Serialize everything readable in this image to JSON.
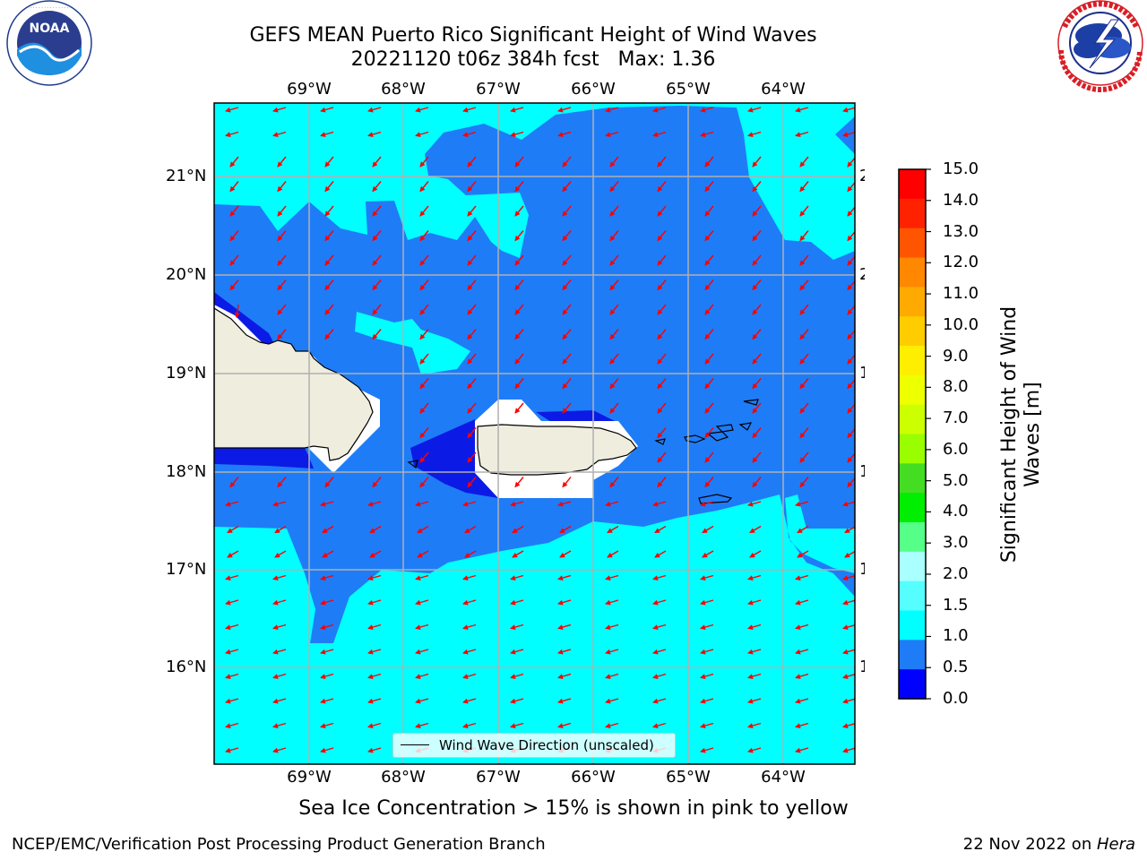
{
  "header": {
    "title_line1": "GEFS MEAN Puerto Rico Significant Height of Wind Waves",
    "title_line2": "20221120 t06z 384h fcst   Max: 1.36"
  },
  "logos": {
    "noaa": {
      "text": "NOAA",
      "ring_text": "NATIONAL OCEANIC AND ATMOSPHERIC ADMINISTRATION · U.S. DEPARTMENT OF COMMERCE"
    },
    "nws": {
      "ring_text": "NATIONAL WEATHER SERVICE"
    }
  },
  "map": {
    "lon_labels": [
      "69°W",
      "68°W",
      "67°W",
      "66°W",
      "65°W",
      "64°W"
    ],
    "lat_labels": [
      "21°N",
      "20°N",
      "19°N",
      "18°N",
      "17°N",
      "16°N"
    ],
    "legend_label": "Wind Wave Direction (unscaled)",
    "colors": {
      "ocean_low": "#1f7cf7",
      "ocean_mid": "#00ffff",
      "ocean_min": "#0c1ae6",
      "land": "#efedde",
      "arrow": "#ff0000",
      "grid": "#b0b0b0"
    }
  },
  "colorbar": {
    "title": "Significant Height of Wind Waves [m]",
    "ticks": [
      "15.0",
      "14.0",
      "13.0",
      "12.0",
      "11.0",
      "10.0",
      "9.0",
      "8.0",
      "7.0",
      "6.0",
      "5.0",
      "4.0",
      "3.0",
      "2.0",
      "1.5",
      "1.0",
      "0.5",
      "0.0"
    ],
    "colors_top_to_bottom": [
      "#ff0000",
      "#ff2200",
      "#ff5500",
      "#ff8800",
      "#ffaa00",
      "#ffcc00",
      "#ffee00",
      "#eeff00",
      "#ccff00",
      "#99ff00",
      "#44dd22",
      "#00ee00",
      "#55ff88",
      "#aaffff",
      "#55ffff",
      "#00ffff",
      "#1f7cf7",
      "#0000ff"
    ]
  },
  "caption": "Sea Ice Concentration > 15% is shown in pink to yellow",
  "footer": {
    "left": "NCEP/EMC/Verification Post Processing Product Generation Branch",
    "right_prefix": "22 Nov 2022 on ",
    "right_host": "Hera"
  }
}
